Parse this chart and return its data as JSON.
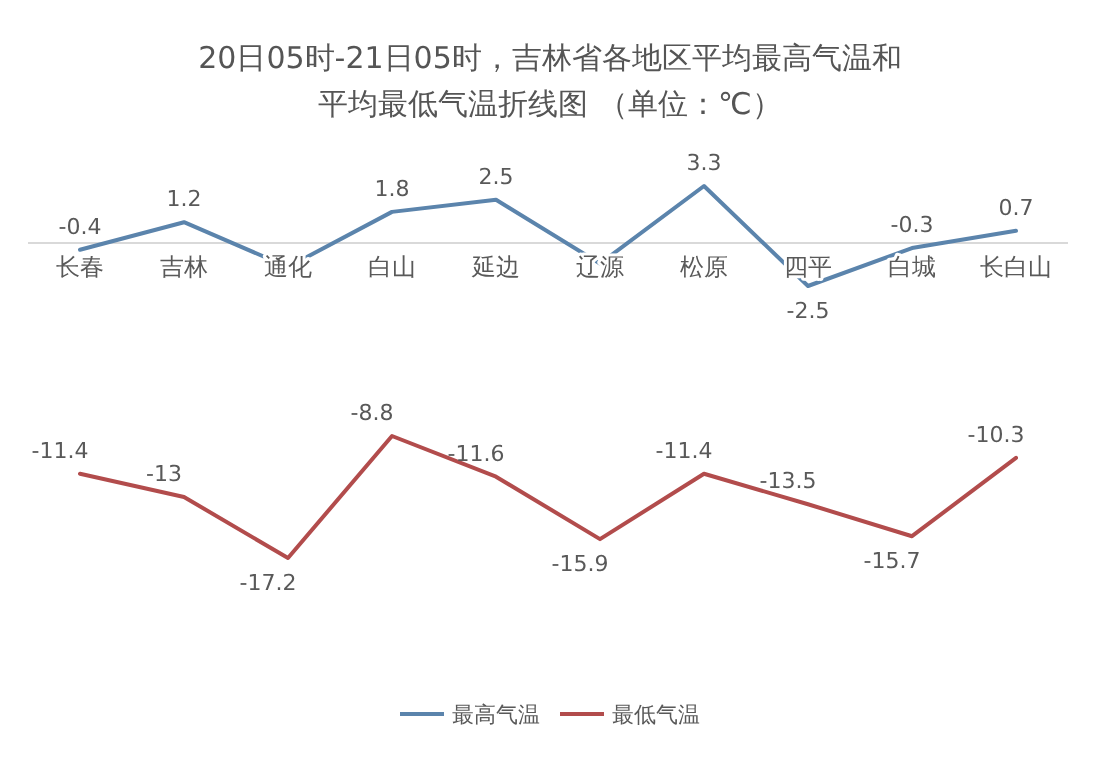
{
  "chart_data": [
    {
      "type": "line",
      "title": "20日05时-21日05时，吉林省各地区平均最高气温和平均最低气温折线图 （单位：℃）",
      "categories": [
        "长春",
        "吉林",
        "通化",
        "白山",
        "延边",
        "辽源",
        "松原",
        "四平",
        "白城",
        "长白山"
      ],
      "legend": "bottom",
      "marker": "none",
      "line_style": "solid",
      "series": [
        {
          "name": "最高气温",
          "color": "#5b84ac",
          "values": [
            -0.4,
            1.2,
            -1.4,
            1.8,
            2.5,
            -1.2,
            3.3,
            -2.5,
            -0.3,
            0.7
          ],
          "value_labels": [
            "-0.4",
            "1.2",
            null,
            "1.8",
            "2.5",
            null,
            "3.3",
            "-2.5",
            "-0.3",
            "0.7"
          ]
        }
      ]
    },
    {
      "type": "line",
      "categories": [
        null,
        null,
        null,
        null,
        null,
        null,
        null,
        null,
        null,
        null
      ],
      "tick_labels": false,
      "data_labels": true,
      "legend": "bottom",
      "marker": "none",
      "line_style": "solid",
      "series": [
        {
          "name": "最低气温",
          "color": "#b24c4c",
          "values": [
            -11.4,
            -13,
            -17.2,
            -8.8,
            -11.6,
            -15.9,
            -11.4,
            -13.5,
            -15.7,
            -10.3
          ]
        }
      ]
    }
  ]
}
